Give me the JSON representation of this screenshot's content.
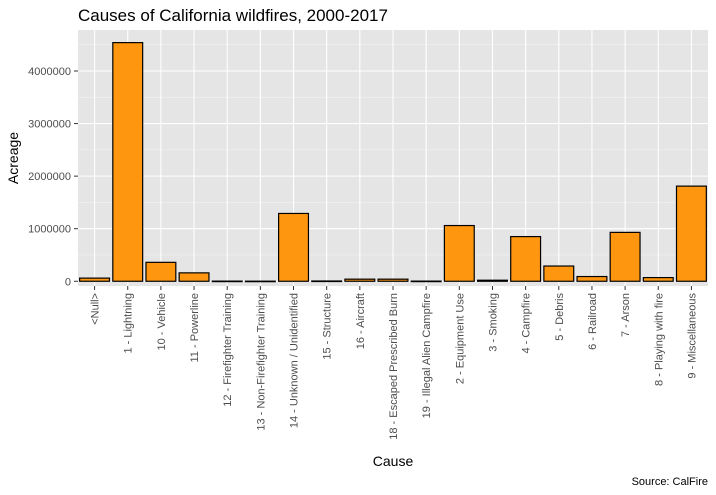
{
  "chart_data": {
    "type": "bar",
    "title": "Causes of California wildfires, 2000-2017",
    "xlabel": "Cause",
    "ylabel": "Acreage",
    "caption": "Source: CalFire",
    "categories": [
      "<Null>",
      "1 - Lightning",
      "10 - Vehicle",
      "11 - Powerline",
      "12 - Firefighter Training",
      "13 - Non-Firefighter Training",
      "14 - Unknown / Unidentified",
      "15 - Structure",
      "16 - Aircraft",
      "18 - Escaped Prescribed Burn",
      "19 - Illegal Alien Campfire",
      "2 - Equipment Use",
      "3 - Smoking",
      "4 - Campfire",
      "5 - Debris",
      "6 - Railroad",
      "7 - Arson",
      "8 - Playing with fire",
      "9 - Miscellaneous"
    ],
    "values": [
      60000,
      4540000,
      360000,
      160000,
      3000,
      2000,
      1290000,
      5000,
      40000,
      40000,
      3000,
      1060000,
      20000,
      850000,
      290000,
      90000,
      930000,
      70000,
      1810000
    ],
    "ylim": [
      -90000,
      4780000
    ],
    "yticks": [
      0,
      1000000,
      2000000,
      3000000,
      4000000
    ],
    "ytick_labels": [
      "0",
      "1000000",
      "2000000",
      "3000000",
      "4000000"
    ],
    "grid": true,
    "legend": "none",
    "colors": {
      "bar_fill": "#ff9610",
      "bar_stroke": "#000000",
      "panel_background": "#e5e5e5",
      "grid_major": "#ffffff",
      "grid_minor": "#f2f2f2"
    }
  }
}
